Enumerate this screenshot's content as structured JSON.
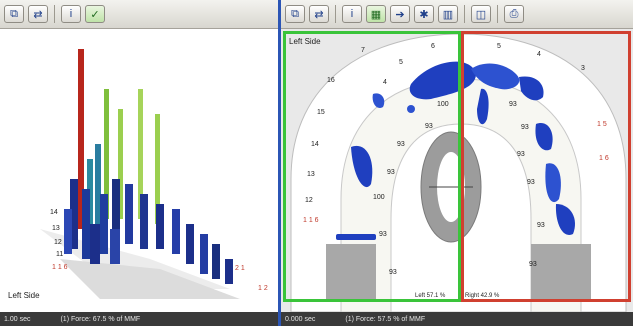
{
  "left_pane": {
    "toolbar": {
      "buttons": [
        {
          "icon": "copy-icon",
          "label": "⧉"
        },
        {
          "icon": "swap-icon",
          "label": "⇄"
        },
        {
          "icon": "info-icon",
          "label": "i"
        },
        {
          "icon": "selected-tool-icon",
          "label": "✓"
        }
      ]
    },
    "tooth_labels": [
      "14",
      "13",
      "12",
      "11",
      "1 1 6"
    ],
    "side_label": "Left Side",
    "red_labels": [
      "2 1",
      "1 2"
    ],
    "status": {
      "left": "1.00 sec",
      "right": "(1)  Force: 67.5  % of MMF"
    }
  },
  "right_pane": {
    "toolbar": {
      "buttons": [
        {
          "icon": "copy-icon",
          "label": "⧉"
        },
        {
          "icon": "swap-icon",
          "label": "⇄"
        },
        {
          "icon": "info-icon",
          "label": "i"
        },
        {
          "icon": "grid-icon",
          "label": "▦"
        },
        {
          "icon": "arrow-icon",
          "label": "➔"
        },
        {
          "icon": "target-icon",
          "label": "✱"
        },
        {
          "icon": "chart-icon",
          "label": "▥"
        },
        {
          "icon": "open-icon",
          "label": "◫"
        },
        {
          "icon": "print-icon",
          "label": "⎙"
        }
      ]
    },
    "side_label": "Left Side",
    "tooth_labels_left": [
      "7",
      "16",
      "15",
      "14",
      "13",
      "12",
      "1 1 6"
    ],
    "tooth_labels_inner": [
      "6",
      "5",
      "4",
      "100",
      "93",
      "93",
      "93",
      "100",
      "93",
      "93"
    ],
    "tooth_labels_right": [
      "5",
      "4",
      "3",
      "93",
      "93",
      "93",
      "93",
      "93",
      "93"
    ],
    "red_labels_right": [
      "1 5",
      "1 6"
    ],
    "legend_left": "Left 57.1 %",
    "legend_right": "Right 42.9 %",
    "status": {
      "left": "0.000 sec",
      "right": "(1)  Force: 57.5  % of MMF"
    }
  },
  "colors": {
    "accent_blue": "#2b55b5",
    "green_zone": "#3ac43a",
    "red_zone": "#d04030"
  }
}
